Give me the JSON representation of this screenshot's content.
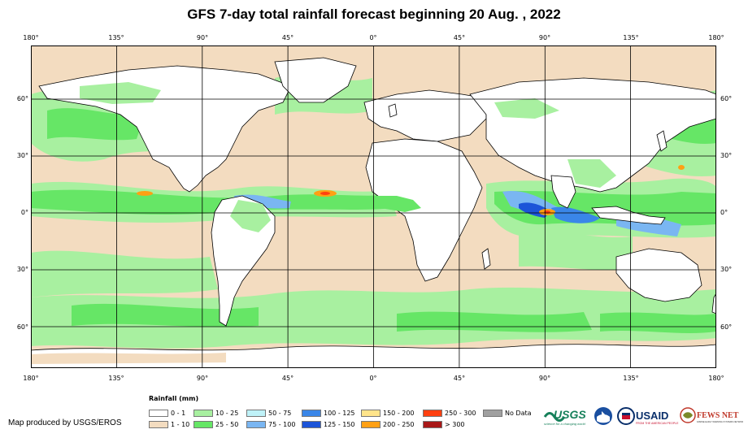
{
  "title": "GFS 7-day total rainfall forecast beginning 20 Aug. , 2022",
  "lon_labels": [
    "180°",
    "135°",
    "90°",
    "45°",
    "0°",
    "45°",
    "90°",
    "135°",
    "180°"
  ],
  "lat_labels": [
    "60°",
    "30°",
    "0°",
    "30°",
    "60°"
  ],
  "legend": {
    "title": "Rainfall (mm)",
    "items": [
      {
        "label": "0 - 1",
        "color": "#ffffff"
      },
      {
        "label": "1 - 10",
        "color": "#f3dcc0"
      },
      {
        "label": "10 - 25",
        "color": "#a8f0a0"
      },
      {
        "label": "25 - 50",
        "color": "#66e666"
      },
      {
        "label": "50 - 75",
        "color": "#bff2f8"
      },
      {
        "label": "75 - 100",
        "color": "#7ab6f2"
      },
      {
        "label": "100 - 125",
        "color": "#3a86e8"
      },
      {
        "label": "125 - 150",
        "color": "#1c54d8"
      },
      {
        "label": "150 - 200",
        "color": "#ffe48a"
      },
      {
        "label": "200 - 250",
        "color": "#ffa014"
      },
      {
        "label": "250 - 300",
        "color": "#ff4010"
      },
      {
        "label": "> 300",
        "color": "#a81818"
      },
      {
        "label": "No Data",
        "color": "#a0a0a0"
      }
    ]
  },
  "credit": "Map produced by USGS/EROS",
  "logos": {
    "usgs": {
      "name": "USGS",
      "tagline": "science for a changing world",
      "color": "#16805a"
    },
    "noaa": {
      "name": "NOAA"
    },
    "usaid": {
      "name": "USAID",
      "tagline": "FROM THE AMERICAN PEOPLE",
      "color": "#0a2f6b",
      "accent": "#c8102e"
    },
    "fewsnet": {
      "name": "FEWS NET",
      "tagline": "FAMINE EARLY WARNING SYSTEMS NETWORK",
      "color": "#c0392b"
    }
  }
}
